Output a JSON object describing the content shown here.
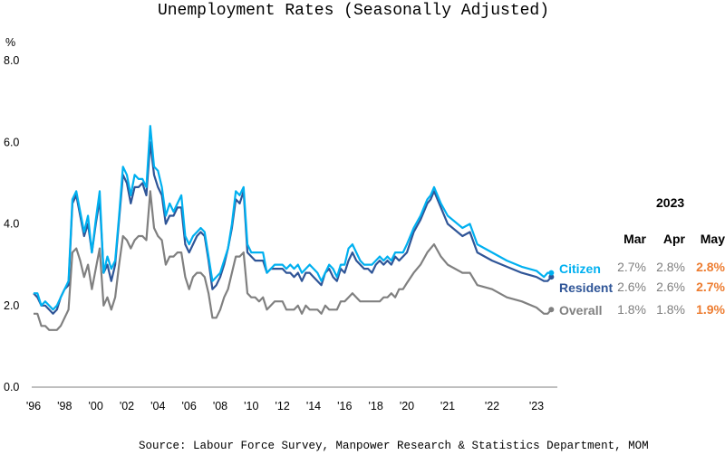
{
  "chart_data": {
    "type": "line",
    "title": "Unemployment Rates (Seasonally Adjusted)",
    "ylabel": "%",
    "ylim": [
      0,
      8
    ],
    "yticks": [
      "0.0",
      "2.0",
      "4.0",
      "6.0",
      "8.0"
    ],
    "xticks": [
      {
        "year": 1996,
        "label": "'96"
      },
      {
        "year": 1998,
        "label": "'98"
      },
      {
        "year": 2000,
        "label": "'00"
      },
      {
        "year": 2002,
        "label": "'02"
      },
      {
        "year": 2004,
        "label": "'04"
      },
      {
        "year": 2006,
        "label": "'06"
      },
      {
        "year": 2008,
        "label": "'08"
      },
      {
        "year": 2010,
        "label": "'10"
      },
      {
        "year": 2012,
        "label": "'12"
      },
      {
        "year": 2014,
        "label": "'14"
      },
      {
        "year": 2016,
        "label": "'16"
      },
      {
        "year": 2018,
        "label": "'18"
      },
      {
        "year": 2020,
        "label": "'20"
      },
      {
        "year": 2021,
        "label": "'21"
      },
      {
        "year": 2022,
        "label": "'22"
      },
      {
        "year": 2023,
        "label": "'23"
      }
    ],
    "grid": false,
    "legend_placement": "right, at line ends",
    "dates": [
      "1996-01",
      "1996-04",
      "1996-07",
      "1996-10",
      "1997-01",
      "1997-04",
      "1997-07",
      "1997-10",
      "1998-01",
      "1998-04",
      "1998-07",
      "1998-10",
      "1999-01",
      "1999-04",
      "1999-07",
      "1999-10",
      "2000-01",
      "2000-04",
      "2000-07",
      "2000-10",
      "2001-01",
      "2001-04",
      "2001-07",
      "2001-10",
      "2002-01",
      "2002-04",
      "2002-07",
      "2002-10",
      "2003-01",
      "2003-04",
      "2003-07",
      "2003-10",
      "2004-01",
      "2004-04",
      "2004-07",
      "2004-10",
      "2005-01",
      "2005-04",
      "2005-07",
      "2005-10",
      "2006-01",
      "2006-04",
      "2006-07",
      "2006-10",
      "2007-01",
      "2007-04",
      "2007-07",
      "2007-10",
      "2008-01",
      "2008-04",
      "2008-07",
      "2008-10",
      "2009-01",
      "2009-04",
      "2009-07",
      "2009-10",
      "2010-01",
      "2010-04",
      "2010-07",
      "2010-10",
      "2011-01",
      "2011-04",
      "2011-07",
      "2011-10",
      "2012-01",
      "2012-04",
      "2012-07",
      "2012-10",
      "2013-01",
      "2013-04",
      "2013-07",
      "2013-10",
      "2014-01",
      "2014-04",
      "2014-07",
      "2014-10",
      "2015-01",
      "2015-04",
      "2015-07",
      "2015-10",
      "2016-01",
      "2016-04",
      "2016-07",
      "2016-10",
      "2017-01",
      "2017-04",
      "2017-07",
      "2017-10",
      "2018-01",
      "2018-04",
      "2018-07",
      "2018-10",
      "2019-01",
      "2019-04",
      "2019-07",
      "2019-10",
      "2020-01",
      "2020-03",
      "2020-05",
      "2020-07",
      "2020-08",
      "2020-09",
      "2020-11",
      "2021-01",
      "2021-05",
      "2021-07",
      "2021-09",
      "2022-01",
      "2022-05",
      "2022-09",
      "2023-01",
      "2023-03",
      "2023-04",
      "2023-05"
    ],
    "series": [
      {
        "name": "Overall",
        "color": "#808080",
        "values": [
          1.8,
          1.8,
          1.5,
          1.5,
          1.4,
          1.4,
          1.4,
          1.5,
          1.7,
          1.9,
          3.3,
          3.4,
          3.1,
          2.7,
          3.0,
          2.4,
          2.9,
          3.4,
          2.0,
          2.2,
          1.9,
          2.2,
          3.0,
          3.7,
          3.6,
          3.4,
          3.6,
          3.7,
          3.7,
          3.6,
          4.8,
          3.9,
          3.7,
          3.6,
          3.0,
          3.2,
          3.2,
          3.3,
          3.3,
          2.7,
          2.4,
          2.7,
          2.8,
          2.8,
          2.7,
          2.3,
          1.7,
          1.7,
          1.9,
          2.2,
          2.4,
          2.8,
          3.2,
          3.2,
          3.3,
          2.3,
          2.2,
          2.2,
          2.1,
          2.2,
          1.9,
          2.0,
          2.1,
          2.1,
          2.1,
          1.9,
          1.9,
          1.9,
          2.0,
          1.8,
          2.0,
          1.9,
          1.9,
          1.9,
          1.8,
          2.0,
          1.9,
          1.9,
          1.9,
          2.1,
          2.1,
          2.2,
          2.3,
          2.2,
          2.1,
          2.1,
          2.1,
          2.1,
          2.1,
          2.1,
          2.2,
          2.2,
          2.3,
          2.2,
          2.4,
          2.4,
          2.55,
          2.8,
          3.0,
          3.3,
          3.4,
          3.5,
          3.2,
          3.0,
          2.8,
          2.8,
          2.5,
          2.4,
          2.2,
          2.1,
          1.95,
          1.8,
          1.8,
          1.9
        ]
      },
      {
        "name": "Resident",
        "color": "#2f5597",
        "values": [
          2.3,
          2.2,
          2.0,
          2.0,
          1.9,
          1.8,
          1.9,
          2.2,
          2.4,
          2.5,
          4.5,
          4.7,
          4.2,
          3.7,
          4.0,
          3.3,
          4.0,
          4.6,
          2.8,
          3.0,
          2.6,
          3.0,
          4.1,
          5.2,
          5.0,
          4.5,
          4.9,
          4.9,
          5.0,
          4.7,
          6.0,
          5.2,
          4.9,
          4.7,
          4.0,
          4.2,
          4.2,
          4.4,
          4.4,
          3.5,
          3.3,
          3.5,
          3.7,
          3.8,
          3.7,
          3.1,
          2.4,
          2.5,
          2.7,
          3.0,
          3.4,
          3.9,
          4.6,
          4.5,
          4.8,
          3.3,
          3.2,
          3.1,
          3.1,
          3.1,
          2.8,
          2.9,
          2.9,
          2.9,
          2.9,
          2.8,
          2.8,
          2.7,
          2.8,
          2.6,
          2.8,
          2.8,
          2.7,
          2.6,
          2.5,
          2.8,
          2.9,
          2.7,
          2.6,
          2.9,
          2.8,
          3.1,
          3.3,
          3.1,
          3.0,
          2.9,
          2.9,
          2.8,
          3.0,
          3.1,
          3.0,
          3.1,
          3.0,
          3.2,
          3.1,
          3.2,
          3.3,
          3.8,
          4.1,
          4.5,
          4.6,
          4.8,
          4.4,
          4.0,
          3.7,
          3.8,
          3.3,
          3.1,
          2.95,
          2.8,
          2.7,
          2.6,
          2.6,
          2.7
        ]
      },
      {
        "name": "Citizen",
        "color": "#00b0f0",
        "values": [
          2.3,
          2.3,
          2.0,
          2.1,
          2.0,
          1.9,
          2.0,
          2.2,
          2.4,
          2.6,
          4.6,
          4.8,
          4.3,
          3.8,
          4.2,
          3.3,
          4.1,
          4.8,
          2.8,
          3.2,
          2.9,
          3.1,
          4.2,
          5.4,
          5.2,
          4.7,
          5.2,
          5.1,
          5.1,
          4.9,
          6.4,
          5.4,
          5.3,
          4.9,
          4.2,
          4.5,
          4.3,
          4.5,
          4.7,
          3.7,
          3.5,
          3.7,
          3.8,
          3.9,
          3.8,
          3.2,
          2.6,
          2.7,
          2.8,
          3.1,
          3.4,
          4.0,
          4.8,
          4.7,
          4.9,
          3.5,
          3.3,
          3.3,
          3.3,
          3.3,
          2.8,
          2.9,
          3.0,
          3.0,
          3.0,
          2.9,
          3.0,
          2.9,
          3.0,
          2.8,
          2.9,
          3.0,
          2.9,
          2.8,
          2.6,
          2.8,
          3.0,
          2.9,
          2.7,
          3.0,
          3.0,
          3.4,
          3.5,
          3.3,
          3.1,
          3.0,
          3.0,
          3.0,
          3.1,
          3.2,
          3.1,
          3.2,
          3.1,
          3.3,
          3.3,
          3.3,
          3.5,
          3.9,
          4.2,
          4.6,
          4.7,
          4.9,
          4.5,
          4.2,
          3.9,
          4.0,
          3.5,
          3.3,
          3.1,
          2.95,
          2.85,
          2.7,
          2.8,
          2.8
        ]
      }
    ],
    "table": {
      "year": "2023",
      "columns": [
        "Mar",
        "Apr",
        "May"
      ],
      "rows": [
        {
          "label": "Citizen",
          "color": "#00b0f0",
          "values": [
            "2.7%",
            "2.8%",
            "2.8%"
          ]
        },
        {
          "label": "Resident",
          "color": "#2f5597",
          "values": [
            "2.6%",
            "2.6%",
            "2.7%"
          ]
        },
        {
          "label": "Overall",
          "color": "#808080",
          "values": [
            "1.8%",
            "1.8%",
            "1.9%"
          ]
        }
      ],
      "value_color": "#7f7f7f",
      "latest_color": "#ed7d31"
    },
    "source": "Source: Labour Force Survey, Manpower Research & Statistics Department, MOM"
  }
}
